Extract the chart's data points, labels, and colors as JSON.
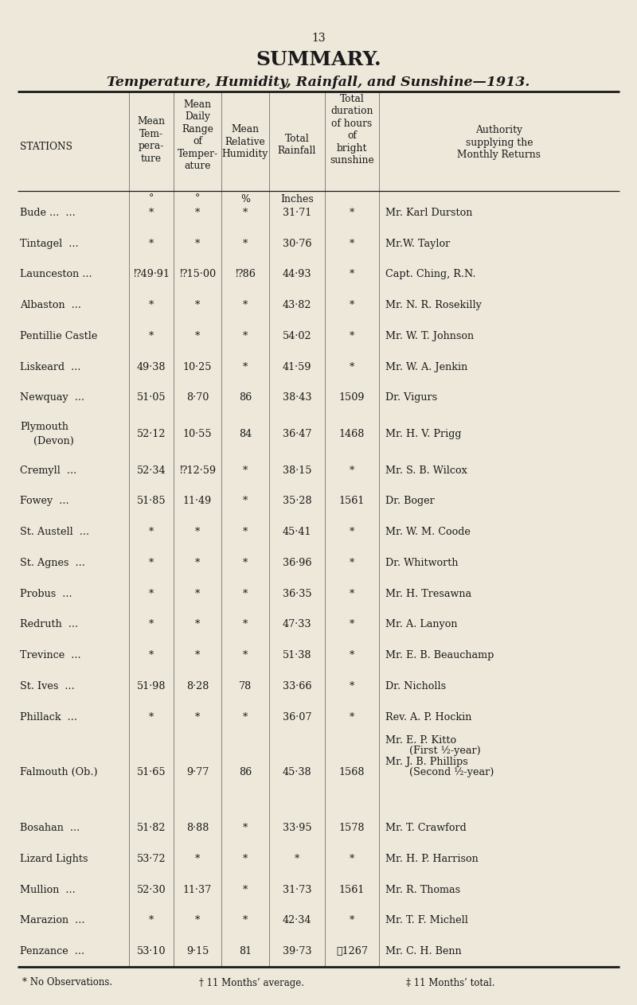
{
  "page_number": "13",
  "title": "SUMMARY.",
  "subtitle": "Temperature, Humidity, Rainfall, and Sunshine—1913.",
  "bg_color": "#ede8da",
  "text_color": "#1a1a1a",
  "rows": [
    [
      "Bude ...  ...",
      "*",
      "*",
      "*",
      "31·71",
      "*",
      "Mr. Karl Durston"
    ],
    [
      "Tintagel  ...",
      "*",
      "*",
      "*",
      "30·76",
      "*",
      "Mr.W. Taylor"
    ],
    [
      "Launceston ...",
      "⁉49·91",
      "⁉15·00",
      "⁉86",
      "44·93",
      "*",
      "Capt. Ching, R.N."
    ],
    [
      "Albaston  ...",
      "*",
      "*",
      "*",
      "43·82",
      "*",
      "Mr. N. R. Rosekilly"
    ],
    [
      "Pentillie Castle",
      "*",
      "*",
      "*",
      "54·02",
      "*",
      "Mr. W. T. Johnson"
    ],
    [
      "Liskeard  ...",
      "49·38",
      "10·25",
      "*",
      "41·59",
      "*",
      "Mr. W. A. Jenkin"
    ],
    [
      "Newquay  ...",
      "51·05",
      "8·70",
      "86",
      "38·43",
      "1509",
      "Dr. Vigurs"
    ],
    [
      "Plymouth\n(Devon)",
      "52·12",
      "10·55",
      "84",
      "36·47",
      "1468",
      "Mr. H. V. Prigg"
    ],
    [
      "Cremyll  ...",
      "52·34",
      "⁉12·59",
      "*",
      "38·15",
      "*",
      "Mr. S. B. Wilcox"
    ],
    [
      "Fowey  ...",
      "51·85",
      "11·49",
      "*",
      "35·28",
      "1561",
      "Dr. Boger"
    ],
    [
      "St. Austell  ...",
      "*",
      "*",
      "*",
      "45·41",
      "*",
      "Mr. W. M. Coode"
    ],
    [
      "St. Agnes  ...",
      "*",
      "*",
      "*",
      "36·96",
      "*",
      "Dr. Whitworth"
    ],
    [
      "Probus  ...",
      "*",
      "*",
      "*",
      "36·35",
      "*",
      "Mr. H. Tresawna"
    ],
    [
      "Redruth  ...",
      "*",
      "*",
      "*",
      "47·33",
      "*",
      "Mr. A. Lanyon"
    ],
    [
      "Trevince  ...",
      "*",
      "*",
      "*",
      "51·38",
      "*",
      "Mr. E. B. Beauchamp"
    ],
    [
      "St. Ives  ...",
      "51·98",
      "8·28",
      "78",
      "33·66",
      "*",
      "Dr. Nicholls"
    ],
    [
      "Phillack  ...",
      "*",
      "*",
      "*",
      "36·07",
      "*",
      "Rev. A. P. Hockin"
    ],
    [
      "Falmouth (Ob.)",
      "51·65",
      "9·77",
      "86",
      "45·38",
      "1568",
      "Mr. E. P. Kitto|(First ½-year)|Mr. J. B. Phillips|(Second ½-year)"
    ],
    [
      "Bosahan  ...",
      "51·82",
      "8·88",
      "*",
      "33·95",
      "1578",
      "Mr. T. Crawford"
    ],
    [
      "Lizard Lights",
      "53·72",
      "*",
      "*",
      "*",
      "*",
      "Mr. H. P. Harrison"
    ],
    [
      "Mullion  ...",
      "52·30",
      "11·37",
      "*",
      "31·73",
      "1561",
      "Mr. R. Thomas"
    ],
    [
      "Marazion  ...",
      "*",
      "*",
      "*",
      "42·34",
      "*",
      "Mr. T. F. Michell"
    ],
    [
      "Penzance  ...",
      "53·10",
      "9·15",
      "81",
      "39·73",
      "⁊1267",
      "Mr. C. H. Benn"
    ]
  ],
  "footnote1": "* No Observations.",
  "footnote2": "† 11 Months’ average.",
  "footnote3": "‡ 11 Months’ total."
}
